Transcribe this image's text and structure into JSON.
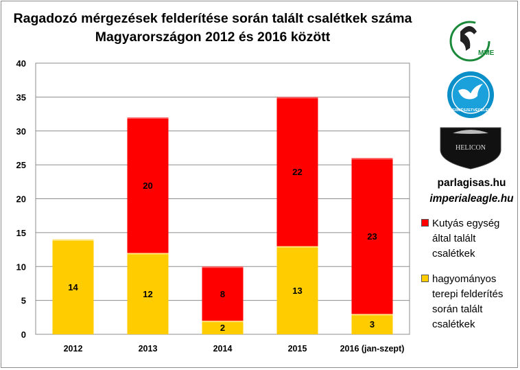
{
  "chart_data": {
    "type": "bar",
    "stacked": true,
    "title": "Ragadozó mérgezések felderítése során talált csalétkek száma Magyarországon 2012 és 2016 között",
    "categories": [
      "2012",
      "2013",
      "2014",
      "2015",
      "2016 (jan-szept)"
    ],
    "series": [
      {
        "name": "hagyományos terepi felderítés során talált csalétkek",
        "color": "#ffcc00",
        "values": [
          14,
          12,
          2,
          13,
          3
        ]
      },
      {
        "name": "Kutyás egység által talált csalétkek",
        "color": "#ff0000",
        "values": [
          0,
          20,
          8,
          22,
          23
        ]
      }
    ],
    "ylim": [
      0,
      40
    ],
    "yticks": [
      "0",
      "5",
      "10",
      "15",
      "20",
      "25",
      "30",
      "35",
      "40"
    ],
    "grid": true,
    "legend_position": "right"
  },
  "sidebar": {
    "logos": [
      "MME",
      "TERMÉSZETVÉDELEM",
      "HELICON"
    ],
    "site1": "parlagisas.hu",
    "site2": "imperialeagle.hu"
  },
  "legend": {
    "red_label": "Kutyás egység által talált csalétkek",
    "yellow_label": "hagyományos terepi felderítés során talált csalétkek"
  }
}
